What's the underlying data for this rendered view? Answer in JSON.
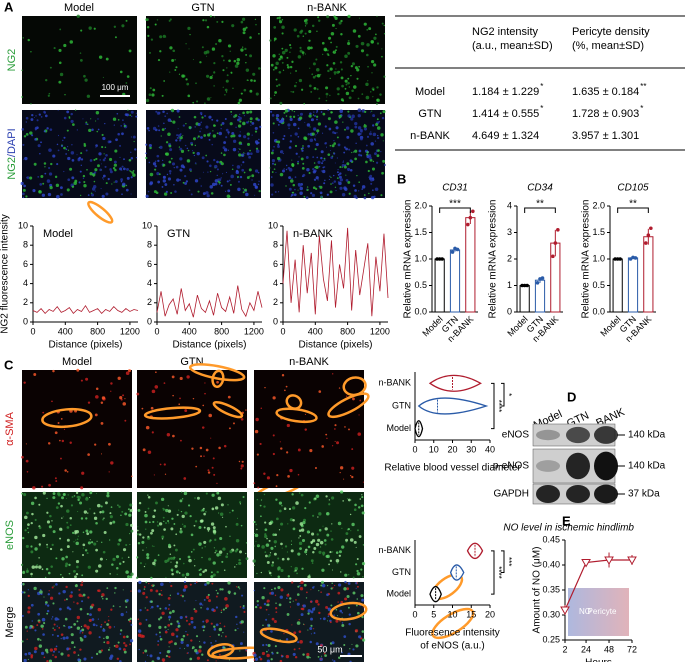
{
  "panel_labels": [
    "A",
    "B",
    "C",
    "D",
    "E"
  ],
  "panel_a": {
    "columns": [
      "Model",
      "GTN",
      "n-BANK"
    ],
    "rows": [
      [
        "NG2"
      ],
      [
        "NG2",
        "/DAPI"
      ]
    ],
    "scale_bar": "100 μm"
  },
  "table": {
    "header": [
      [
        "NG2 intensity",
        "(a.u., mean±SD)"
      ],
      [
        "Pericyte density",
        "(%, mean±SD)"
      ]
    ],
    "rows": [
      {
        "label": "Model",
        "cells": [
          "1.184 ± 1.229",
          "1.635 ± 0.184"
        ],
        "marks": [
          "*",
          "**"
        ]
      },
      {
        "label": "GTN",
        "cells": [
          "1.414 ± 0.555",
          "1.728 ± 0.903"
        ],
        "marks": [
          "*",
          "*"
        ]
      },
      {
        "label": "n-BANK",
        "cells": [
          "4.649 ± 1.324",
          "3.957 ± 1.301"
        ]
      }
    ]
  },
  "panel_c": {
    "columns": [
      "Model",
      "GTN",
      "n-BANK"
    ],
    "rows": [
      "α-SMA",
      "eNOS",
      "Merge"
    ],
    "scale_bar": "50 μm"
  },
  "panel_d": {
    "lanes": [
      "Model",
      "GTN",
      "n-BANK"
    ],
    "bands": [
      "eNOS",
      "p-eNOS",
      "GAPDH"
    ],
    "sizes": [
      "140 kDa",
      "140 kDa",
      "37 kDa"
    ]
  },
  "chart_data": [
    {
      "type": "line",
      "title": "Model",
      "xlabel": "Distance (pixels)",
      "ylabel": "NG2 fluorescence intensity",
      "xlim": [
        0,
        1300
      ],
      "xticks": [
        0,
        400,
        800,
        1200
      ],
      "ylim": [
        0,
        10
      ],
      "yticks": [
        0,
        2,
        4,
        6,
        8,
        10
      ],
      "x": [
        0,
        50,
        100,
        150,
        200,
        250,
        300,
        350,
        400,
        450,
        500,
        550,
        600,
        650,
        700,
        750,
        800,
        850,
        900,
        950,
        1000,
        1050,
        1100,
        1150,
        1200,
        1250,
        1300
      ],
      "series": [
        {
          "color": "#b01c2e",
          "values": [
            1.2,
            1.0,
            1.4,
            0.9,
            1.3,
            1.1,
            1.6,
            1.0,
            1.2,
            1.5,
            0.9,
            1.3,
            1.1,
            1.7,
            1.0,
            1.2,
            1.4,
            0.9,
            1.3,
            1.1,
            1.6,
            1.2,
            1.0,
            1.4,
            1.1,
            1.3,
            1.2
          ]
        }
      ]
    },
    {
      "type": "line",
      "title": "GTN",
      "xlabel": "Distance (pixels)",
      "xlim": [
        0,
        1300
      ],
      "xticks": [
        0,
        400,
        800,
        1200
      ],
      "ylim": [
        0,
        10
      ],
      "yticks": [
        0,
        2,
        4,
        6,
        8,
        10
      ],
      "x": [
        0,
        50,
        100,
        150,
        200,
        250,
        300,
        350,
        400,
        450,
        500,
        550,
        600,
        650,
        700,
        750,
        800,
        850,
        900,
        950,
        1000,
        1050,
        1100,
        1150,
        1200,
        1250,
        1300
      ],
      "series": [
        {
          "color": "#b01c2e",
          "values": [
            1.0,
            3.2,
            0.6,
            1.8,
            2.4,
            0.8,
            3.5,
            1.2,
            1.9,
            0.5,
            2.8,
            1.4,
            1.0,
            2.2,
            0.7,
            3.0,
            1.5,
            1.1,
            2.6,
            0.9,
            3.8,
            1.3,
            0.6,
            2.0,
            1.2,
            3.2,
            1.5
          ]
        }
      ]
    },
    {
      "type": "line",
      "title": "n-BANK",
      "xlabel": "Distance (pixels)",
      "xlim": [
        0,
        1300
      ],
      "xticks": [
        0,
        400,
        800,
        1200
      ],
      "ylim": [
        0,
        10
      ],
      "yticks": [
        0,
        2,
        4,
        6,
        8,
        10
      ],
      "x": [
        0,
        50,
        100,
        150,
        200,
        250,
        300,
        350,
        400,
        450,
        500,
        550,
        600,
        650,
        700,
        750,
        800,
        850,
        900,
        950,
        1000,
        1050,
        1100,
        1150,
        1200,
        1250,
        1300
      ],
      "series": [
        {
          "color": "#b01c2e",
          "values": [
            4.0,
            9.5,
            2.0,
            6.5,
            1.0,
            8.0,
            3.0,
            7.2,
            0.8,
            9.0,
            4.5,
            2.2,
            8.5,
            1.5,
            6.0,
            3.5,
            9.8,
            1.2,
            7.5,
            2.8,
            5.5,
            8.2,
            0.6,
            6.8,
            3.2,
            9.2,
            2.5
          ]
        }
      ]
    },
    {
      "type": "bar",
      "title": "CD31",
      "ylabel": "Relative mRNA expression",
      "categories": [
        "Model",
        "GTN",
        "n-BANK"
      ],
      "colors": [
        "#000000",
        "#2a5ba8",
        "#b01c2e"
      ],
      "values": [
        1.0,
        1.17,
        1.78
      ],
      "errors": [
        0.01,
        0.03,
        0.12
      ],
      "points": [
        [
          1.0,
          1.0,
          1.0
        ],
        [
          1.13,
          1.2,
          1.18
        ],
        [
          1.65,
          1.78,
          1.9
        ]
      ],
      "ylim": [
        0,
        2
      ],
      "yticks": [
        {
          "value": 0,
          "label": "0.0"
        },
        0.5,
        {
          "value": 1,
          "label": "1.0"
        },
        1.5,
        {
          "value": 2,
          "label": "2.0"
        }
      ],
      "significance": "***"
    },
    {
      "type": "bar",
      "title": "CD34",
      "ylabel": "Relative mRNA expression",
      "categories": [
        "Model",
        "GTN",
        "n-BANK"
      ],
      "colors": [
        "#000000",
        "#2a5ba8",
        "#b01c2e"
      ],
      "values": [
        1.0,
        1.2,
        2.6
      ],
      "errors": [
        0.01,
        0.1,
        0.5
      ],
      "points": [
        [
          1.0,
          1.0,
          1.0
        ],
        [
          1.1,
          1.25,
          1.28
        ],
        [
          2.1,
          2.6,
          3.1
        ]
      ],
      "ylim": [
        0,
        4
      ],
      "yticks": [
        0,
        1,
        2,
        3,
        4
      ],
      "significance": "**"
    },
    {
      "type": "bar",
      "title": "CD105",
      "ylabel": "Relative mRNA expression",
      "categories": [
        "Model",
        "GTN",
        "n-BANK"
      ],
      "colors": [
        "#000000",
        "#2a5ba8",
        "#b01c2e"
      ],
      "values": [
        1.0,
        1.02,
        1.42
      ],
      "errors": [
        0.01,
        0.02,
        0.15
      ],
      "points": [
        [
          1.0,
          1.0,
          1.0
        ],
        [
          1.0,
          1.03,
          1.02
        ],
        [
          1.3,
          1.45,
          1.58
        ]
      ],
      "ylim": [
        0,
        2
      ],
      "yticks": [
        {
          "value": 0,
          "label": "0.0"
        },
        0.5,
        {
          "value": 1,
          "label": "1.0"
        },
        1.5,
        {
          "value": 2,
          "label": "2.0"
        }
      ],
      "significance": "**"
    },
    {
      "type": "violin",
      "categories": [
        "Model",
        "GTN",
        "n-BANK"
      ],
      "colors": [
        "#000000",
        "#2a5ba8",
        "#b01c2e"
      ],
      "min": [
        0,
        2,
        8
      ],
      "median": [
        2,
        12,
        20
      ],
      "max": [
        4,
        38,
        35
      ],
      "xlim": [
        0,
        40
      ],
      "xticks": [
        0,
        10,
        20,
        30,
        40
      ],
      "xlabel": [
        "Relative blood vessel diameter"
      ],
      "significance": [
        "****",
        "*"
      ]
    },
    {
      "type": "violin",
      "categories": [
        "Model",
        "GTN",
        "n-BANK"
      ],
      "colors": [
        "#000000",
        "#2a5ba8",
        "#b01c2e"
      ],
      "min": [
        4,
        9.5,
        14
      ],
      "median": [
        5.5,
        11,
        16
      ],
      "max": [
        7,
        13,
        18
      ],
      "xlim": [
        0,
        20
      ],
      "xticks": [
        0,
        5,
        10,
        15,
        20
      ],
      "xlabel": [
        "Fluoresence intensity",
        "of eNOS (a.u.)"
      ],
      "significance": [
        "****",
        "***"
      ]
    },
    {
      "type": "line",
      "title": "NO level in ischemic hindlimb",
      "xlabel": "Hours",
      "ylabel": "Amount of NO (μM)",
      "xlim": [
        2,
        72
      ],
      "xticks": [
        2,
        24,
        48,
        72
      ],
      "ylim": [
        0.25,
        0.45
      ],
      "yticks": [
        0.25,
        {
          "value": 0.3,
          "label": "0.30"
        },
        0.35,
        {
          "value": 0.4,
          "label": "0.40"
        },
        0.45
      ],
      "x": [
        2,
        24,
        48,
        72
      ],
      "series": [
        {
          "color": "#b01c2e",
          "values": [
            0.31,
            0.405,
            0.41,
            0.41
          ],
          "errors": [
            0.01,
            0.005,
            0.015,
            0.01
          ]
        }
      ],
      "inset_labels": [
        "NO",
        "Pericyte"
      ]
    }
  ]
}
